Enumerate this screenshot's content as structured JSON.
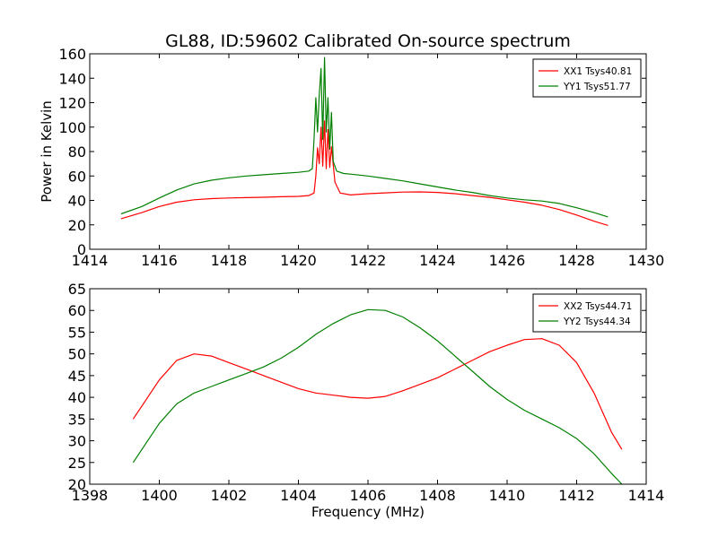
{
  "chart_data": [
    {
      "type": "line",
      "title": "GL88, ID:59602 Calibrated On-source spectrum",
      "xlabel": "",
      "ylabel": "Power in Kelvin",
      "xlim": [
        1414,
        1430
      ],
      "ylim": [
        0,
        160
      ],
      "xticks": [
        1414,
        1416,
        1418,
        1420,
        1422,
        1424,
        1426,
        1428,
        1430
      ],
      "yticks": [
        0,
        20,
        40,
        60,
        80,
        100,
        120,
        140,
        160
      ],
      "legend_position": "top-right",
      "grid": false,
      "series": [
        {
          "name": "XX1 Tsys40.81",
          "color": "#ff0000",
          "points": [
            [
              1414.9,
              25
            ],
            [
              1415.5,
              30
            ],
            [
              1416,
              35
            ],
            [
              1416.5,
              38.5
            ],
            [
              1417,
              40.5
            ],
            [
              1417.5,
              41.5
            ],
            [
              1418,
              42
            ],
            [
              1418.5,
              42.3
            ],
            [
              1419,
              42.6
            ],
            [
              1419.5,
              43
            ],
            [
              1420,
              43.3
            ],
            [
              1420.3,
              44
            ],
            [
              1420.45,
              46
            ],
            [
              1420.5,
              60
            ],
            [
              1420.55,
              83
            ],
            [
              1420.6,
              70
            ],
            [
              1420.65,
              100
            ],
            [
              1420.7,
              68
            ],
            [
              1420.75,
              105
            ],
            [
              1420.8,
              66
            ],
            [
              1420.85,
              98
            ],
            [
              1420.9,
              67
            ],
            [
              1420.95,
              84
            ],
            [
              1421.05,
              55
            ],
            [
              1421.2,
              46
            ],
            [
              1421.5,
              44.5
            ],
            [
              1422,
              45.5
            ],
            [
              1422.5,
              46.2
            ],
            [
              1423,
              46.8
            ],
            [
              1423.5,
              47
            ],
            [
              1424,
              46.5
            ],
            [
              1424.5,
              45.5
            ],
            [
              1425,
              44
            ],
            [
              1425.5,
              42.5
            ],
            [
              1426,
              40.5
            ],
            [
              1426.5,
              38.5
            ],
            [
              1427,
              36
            ],
            [
              1427.5,
              32.5
            ],
            [
              1428,
              28
            ],
            [
              1428.5,
              23
            ],
            [
              1428.9,
              19.5
            ]
          ]
        },
        {
          "name": "YY1 Tsys51.77",
          "color": "#008000",
          "points": [
            [
              1414.9,
              29
            ],
            [
              1415.5,
              35
            ],
            [
              1416,
              42
            ],
            [
              1416.5,
              48.5
            ],
            [
              1417,
              53.5
            ],
            [
              1417.5,
              56.5
            ],
            [
              1418,
              58.5
            ],
            [
              1418.5,
              60
            ],
            [
              1419,
              61
            ],
            [
              1419.5,
              62
            ],
            [
              1420,
              63
            ],
            [
              1420.3,
              64
            ],
            [
              1420.4,
              66
            ],
            [
              1420.45,
              90
            ],
            [
              1420.5,
              124
            ],
            [
              1420.55,
              96
            ],
            [
              1420.6,
              126
            ],
            [
              1420.65,
              148
            ],
            [
              1420.7,
              90
            ],
            [
              1420.75,
              157
            ],
            [
              1420.8,
              96
            ],
            [
              1420.85,
              124
            ],
            [
              1420.9,
              82
            ],
            [
              1420.95,
              112
            ],
            [
              1421.0,
              72
            ],
            [
              1421.1,
              64
            ],
            [
              1421.3,
              62
            ],
            [
              1421.5,
              61.5
            ],
            [
              1422,
              60
            ],
            [
              1422.5,
              58
            ],
            [
              1423,
              56
            ],
            [
              1423.5,
              53.5
            ],
            [
              1424,
              51
            ],
            [
              1424.5,
              48.5
            ],
            [
              1425,
              46.5
            ],
            [
              1425.5,
              44
            ],
            [
              1426,
              42
            ],
            [
              1426.5,
              40.5
            ],
            [
              1427,
              39.5
            ],
            [
              1427.5,
              37.5
            ],
            [
              1428,
              34
            ],
            [
              1428.5,
              30
            ],
            [
              1428.9,
              26.5
            ]
          ]
        }
      ]
    },
    {
      "type": "line",
      "title": "",
      "xlabel": "Frequency (MHz)",
      "ylabel": "",
      "xlim": [
        1398,
        1414
      ],
      "ylim": [
        20,
        65
      ],
      "xticks": [
        1398,
        1400,
        1402,
        1404,
        1406,
        1408,
        1410,
        1412,
        1414
      ],
      "yticks": [
        20,
        25,
        30,
        35,
        40,
        45,
        50,
        55,
        60,
        65
      ],
      "legend_position": "top-right",
      "grid": false,
      "series": [
        {
          "name": "XX2 Tsys44.71",
          "color": "#ff0000",
          "points": [
            [
              1399.25,
              35
            ],
            [
              1399.5,
              38
            ],
            [
              1400,
              44
            ],
            [
              1400.5,
              48.5
            ],
            [
              1401,
              50
            ],
            [
              1401.5,
              49.5
            ],
            [
              1402,
              48
            ],
            [
              1402.5,
              46.5
            ],
            [
              1403,
              45
            ],
            [
              1403.5,
              43.5
            ],
            [
              1404,
              42
            ],
            [
              1404.5,
              41
            ],
            [
              1405,
              40.5
            ],
            [
              1405.5,
              40
            ],
            [
              1406,
              39.8
            ],
            [
              1406.5,
              40.2
            ],
            [
              1407,
              41.5
            ],
            [
              1407.5,
              43
            ],
            [
              1408,
              44.5
            ],
            [
              1408.5,
              46.5
            ],
            [
              1409,
              48.5
            ],
            [
              1409.5,
              50.5
            ],
            [
              1410,
              52
            ],
            [
              1410.5,
              53.3
            ],
            [
              1411,
              53.5
            ],
            [
              1411.5,
              52
            ],
            [
              1412,
              48
            ],
            [
              1412.5,
              41
            ],
            [
              1413,
              32
            ],
            [
              1413.3,
              28
            ]
          ]
        },
        {
          "name": "YY2 Tsys44.34",
          "color": "#008000",
          "points": [
            [
              1399.25,
              25
            ],
            [
              1399.5,
              28
            ],
            [
              1400,
              34
            ],
            [
              1400.5,
              38.5
            ],
            [
              1401,
              41
            ],
            [
              1401.5,
              42.5
            ],
            [
              1402,
              44
            ],
            [
              1402.5,
              45.5
            ],
            [
              1403,
              47
            ],
            [
              1403.5,
              49
            ],
            [
              1404,
              51.5
            ],
            [
              1404.5,
              54.5
            ],
            [
              1405,
              57
            ],
            [
              1405.5,
              59
            ],
            [
              1406,
              60.2
            ],
            [
              1406.5,
              60
            ],
            [
              1407,
              58.5
            ],
            [
              1407.5,
              56
            ],
            [
              1408,
              53
            ],
            [
              1408.5,
              49.5
            ],
            [
              1409,
              46
            ],
            [
              1409.5,
              42.5
            ],
            [
              1410,
              39.5
            ],
            [
              1410.5,
              37
            ],
            [
              1411,
              35
            ],
            [
              1411.5,
              33
            ],
            [
              1412,
              30.5
            ],
            [
              1412.5,
              27
            ],
            [
              1413,
              22.5
            ],
            [
              1413.3,
              20
            ]
          ]
        }
      ]
    }
  ]
}
